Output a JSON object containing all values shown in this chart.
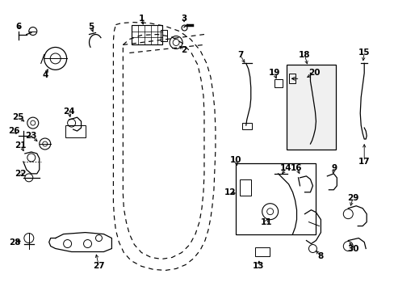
{
  "bg_color": "#ffffff",
  "fig_width": 4.89,
  "fig_height": 3.6,
  "dpi": 100
}
